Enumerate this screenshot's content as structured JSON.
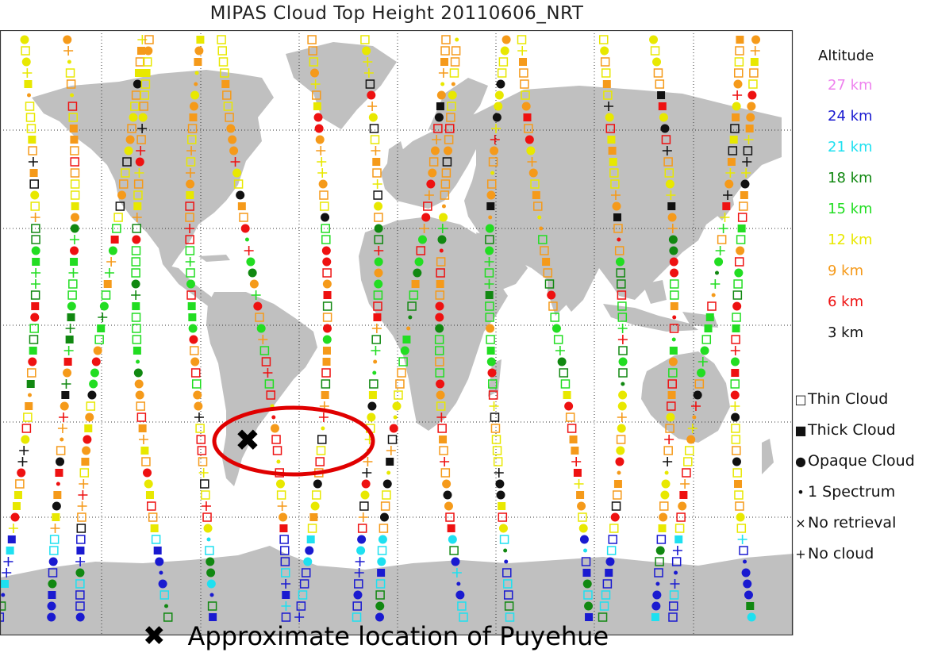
{
  "title": "MIPAS Cloud Top Height 20110606_NRT",
  "legend": {
    "altitude_title": "Altitude",
    "altitudes": [
      {
        "label": "27 km",
        "color": "#ee82ee"
      },
      {
        "label": "24 km",
        "color": "#1a1ad0"
      },
      {
        "label": "21 km",
        "color": "#1ee0f0"
      },
      {
        "label": "18 km",
        "color": "#118811"
      },
      {
        "label": "15 km",
        "color": "#22dd22"
      },
      {
        "label": "12 km",
        "color": "#e8e800"
      },
      {
        "label": "9 km",
        "color": "#f59a1a"
      },
      {
        "label": "6 km",
        "color": "#ee1111"
      },
      {
        "label": "3 km",
        "color": "#111111"
      }
    ],
    "types": [
      {
        "symbol": "□",
        "label": "Thin Cloud"
      },
      {
        "symbol": "■",
        "label": "Thick Cloud"
      },
      {
        "symbol": "●",
        "label": "Opaque Cloud"
      },
      {
        "symbol": "•",
        "label": "1 Spectrum"
      },
      {
        "symbol": "×",
        "label": "No retrieval"
      },
      {
        "symbol": "+",
        "label": "No cloud"
      }
    ]
  },
  "annotation": {
    "marker_symbol": "✖",
    "text": "Approximate location of Puyehue"
  }
}
